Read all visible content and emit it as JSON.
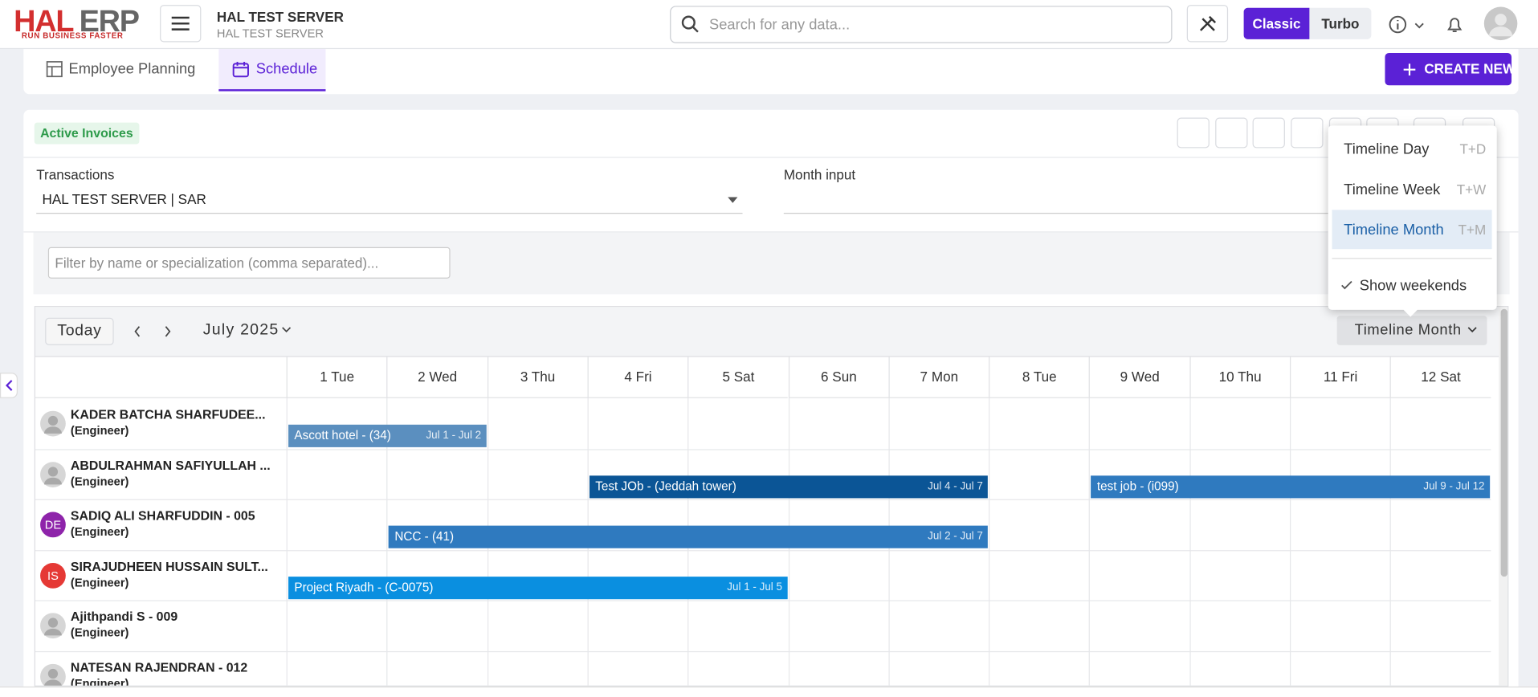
{
  "header": {
    "logo_brand": "HAL",
    "logo_suffix": "ERP",
    "logo_tagline": "RUN BUSINESS FASTER",
    "server_name": "HAL TEST SERVER",
    "server_sub": "HAL TEST SERVER",
    "search_placeholder": "Search for any data...",
    "mode_options": [
      "Classic",
      "Turbo"
    ]
  },
  "tabs": [
    "Employee Planning",
    "Schedule"
  ],
  "create_button": "CREATE NEW",
  "badge": "Active Invoices",
  "fields": [
    {
      "label": "Transactions",
      "value": "HAL TEST SERVER | SAR"
    },
    {
      "label": "Month input"
    }
  ],
  "filter_placeholder": "Filter by name or specialization (comma separated)...",
  "scheduler": {
    "today": "Today",
    "period": "July 2025",
    "view": "Timeline Month",
    "view_menu": [
      {
        "label": "Timeline Day",
        "shortcut": "T+D"
      },
      {
        "label": "Timeline Week",
        "shortcut": "T+W"
      },
      {
        "label": "Timeline Month",
        "shortcut": "T+M"
      }
    ],
    "show_weekends": "Show weekends",
    "days": [
      "1 Tue",
      "2 Wed",
      "3 Thu",
      "4 Fri",
      "5 Sat",
      "6 Sun",
      "7 Mon",
      "8 Tue",
      "9 Wed",
      "10 Thu",
      "11 Fri",
      "12 Sat"
    ],
    "resources": [
      {
        "name": "KADER BATCHA SHARFUDEE...",
        "role": "(Engineer)",
        "events": [
          {
            "title": "Ascott hotel - (34)",
            "range": "Jul 1 - Jul 2",
            "color": "#5b8fbf"
          }
        ]
      },
      {
        "name": "ABDULRAHMAN SAFIYULLAH ...",
        "role": "(Engineer)",
        "events": [
          {
            "title": "Test JOb - (Jeddah tower)",
            "range": "Jul 4 - Jul 7",
            "color": "#0b5596"
          },
          {
            "title": "test job - (i099)",
            "range": "Jul 9 - Jul 12",
            "color": "#2f7abf"
          }
        ]
      },
      {
        "name": "SADIQ ALI SHARFUDDIN - 005",
        "role": "(Engineer)",
        "initials": "DE",
        "avatar_color": "#8e24aa",
        "events": [
          {
            "title": "NCC - (41)",
            "range": "Jul 2 - Jul 7",
            "color": "#2f7abf"
          }
        ]
      },
      {
        "name": "SIRAJUDHEEN HUSSAIN SULT...",
        "role": "(Engineer)",
        "initials": "IS",
        "avatar_color": "#e53935",
        "events": [
          {
            "title": "Project Riyadh - (C-0075)",
            "range": "Jul 1 - Jul 5",
            "color": "#0a8fe0"
          }
        ]
      },
      {
        "name": "Ajithpandi S - 009",
        "role": "(Engineer)",
        "events": []
      },
      {
        "name": "NATESAN RAJENDRAN - 012",
        "role": "(Engineer)",
        "events": []
      }
    ]
  }
}
